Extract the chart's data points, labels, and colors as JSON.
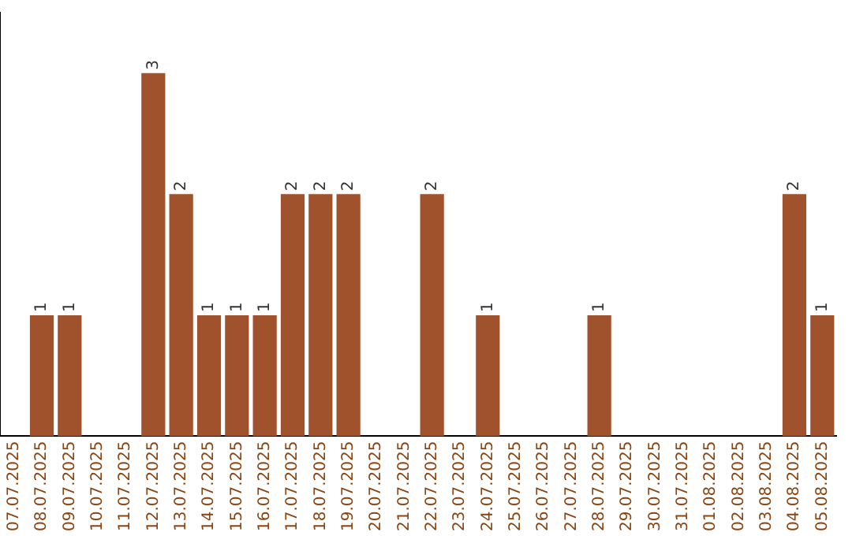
{
  "chart_data": {
    "type": "bar",
    "categories": [
      "07.07.2025",
      "08.07.2025",
      "09.07.2025",
      "10.07.2025",
      "11.07.2025",
      "12.07.2025",
      "13.07.2025",
      "14.07.2025",
      "15.07.2025",
      "16.07.2025",
      "17.07.2025",
      "18.07.2025",
      "19.07.2025",
      "20.07.2025",
      "21.07.2025",
      "22.07.2025",
      "23.07.2025",
      "24.07.2025",
      "25.07.2025",
      "26.07.2025",
      "27.07.2025",
      "28.07.2025",
      "29.07.2025",
      "30.07.2025",
      "31.07.2025",
      "01.08.2025",
      "02.08.2025",
      "03.08.2025",
      "04.08.2025",
      "05.08.2025"
    ],
    "values": [
      0,
      1,
      1,
      0,
      0,
      3,
      2,
      1,
      1,
      1,
      2,
      2,
      2,
      0,
      0,
      2,
      0,
      1,
      0,
      0,
      0,
      1,
      0,
      0,
      0,
      0,
      0,
      0,
      2,
      1
    ],
    "value_labels": [
      null,
      "1",
      "1",
      null,
      null,
      "3",
      "2",
      "1",
      "1",
      "1",
      "2",
      "2",
      "2",
      null,
      null,
      "2",
      null,
      "1",
      null,
      null,
      null,
      "1",
      null,
      null,
      null,
      null,
      null,
      null,
      "2",
      "1"
    ],
    "color": "#a0522d",
    "grid": false,
    "legend": false,
    "tick_labels": "x"
  }
}
